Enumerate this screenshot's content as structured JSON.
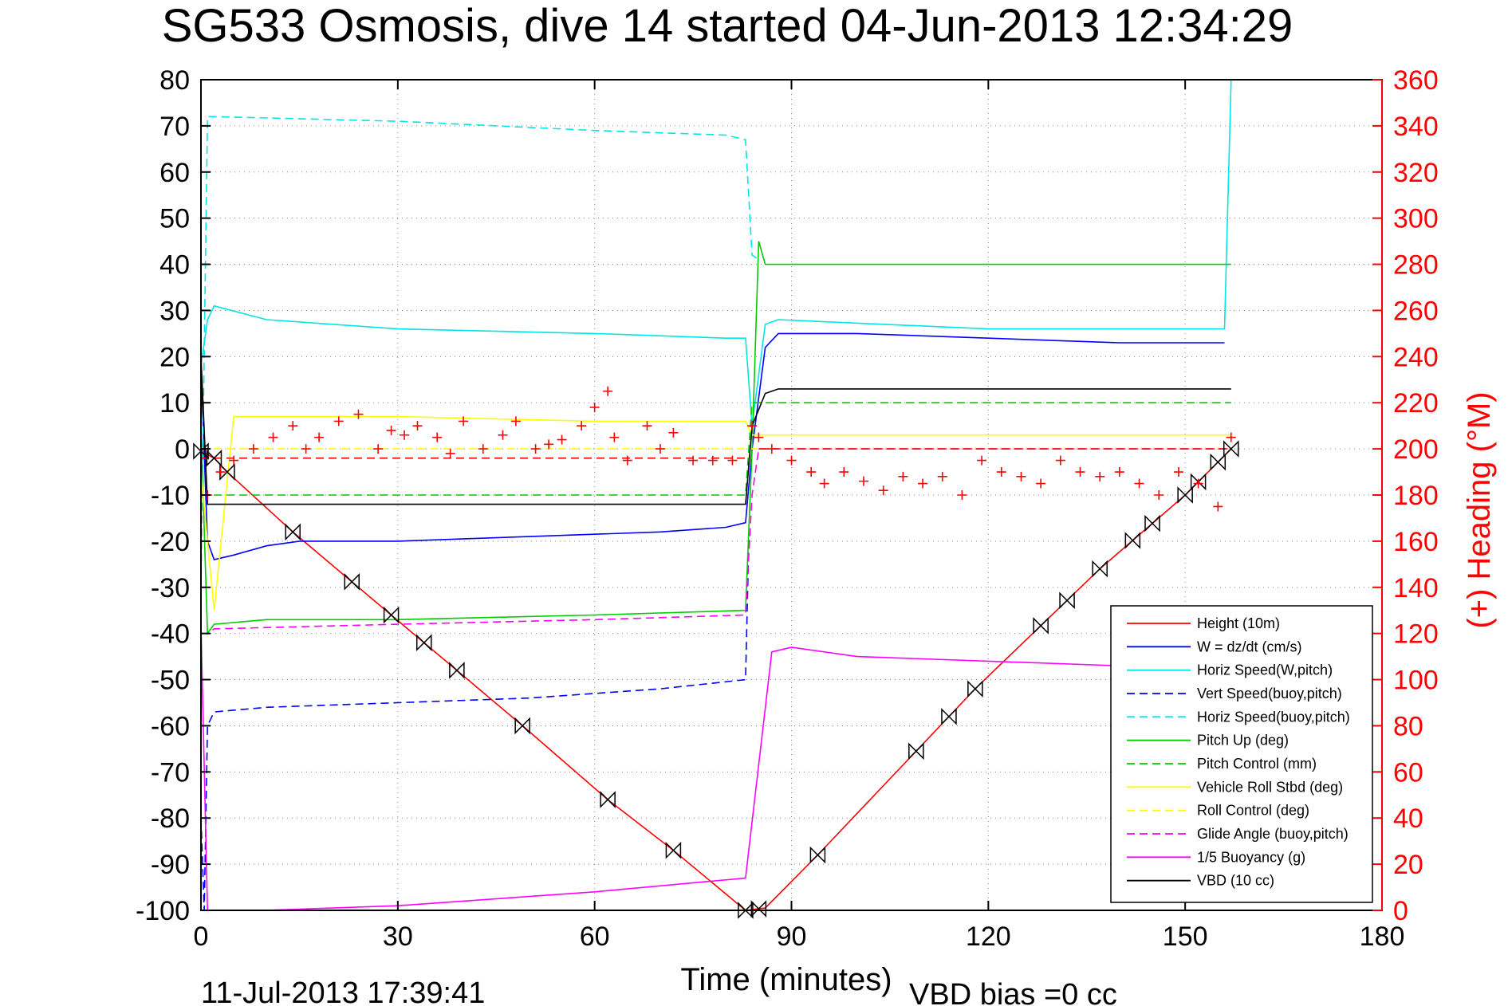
{
  "chart_data": {
    "type": "line",
    "title": "SG533 Osmosis, dive 14 started 04-Jun-2013 12:34:29",
    "xlabel": "Time (minutes)",
    "ylabel": "",
    "y2label": "(+) Heading (°M)",
    "footer_left": "11-Jul-2013 17:39:41",
    "footer_right": "VBD bias =0 cc",
    "xlim": [
      0,
      180
    ],
    "ylim": [
      -100,
      80
    ],
    "y2lim": [
      0,
      360
    ],
    "x_ticks": [
      0,
      30,
      60,
      90,
      120,
      150,
      180
    ],
    "y_ticks": [
      -100,
      -90,
      -80,
      -70,
      -60,
      -50,
      -40,
      -30,
      -20,
      -10,
      0,
      10,
      20,
      30,
      40,
      50,
      60,
      70,
      80
    ],
    "y2_ticks": [
      0,
      20,
      40,
      60,
      80,
      100,
      120,
      140,
      160,
      180,
      200,
      220,
      240,
      260,
      280,
      300,
      320,
      340,
      360
    ],
    "grid": "dotted",
    "legend_position": "lower-right",
    "series": [
      {
        "name": "Height (10m)",
        "color": "#ff0000",
        "style": "solid",
        "x": [
          0,
          2,
          4,
          14,
          29,
          49,
          62,
          72,
          83,
          86,
          94,
          118,
          137,
          150,
          157
        ],
        "y": [
          -0.5,
          -2,
          -5,
          -18,
          -36,
          -60,
          -76,
          -87,
          -100,
          -99.5,
          -88,
          -52,
          -26,
          -10,
          0
        ]
      },
      {
        "name": "W = dz/dt (cm/s)",
        "color": "#0000ff",
        "style": "solid",
        "x": [
          0,
          1,
          2,
          5,
          10,
          15,
          30,
          50,
          70,
          80,
          83,
          84,
          86,
          88,
          100,
          120,
          140,
          156
        ],
        "y": [
          18,
          -20,
          -24,
          -23,
          -21,
          -20,
          -20,
          -19,
          -18,
          -17,
          -16,
          0,
          22,
          25,
          25,
          24,
          23,
          23
        ]
      },
      {
        "name": "Horiz Speed(W,pitch)",
        "color": "#00e5e5",
        "style": "solid",
        "x": [
          0,
          1,
          2,
          10,
          30,
          60,
          80,
          83,
          84,
          86,
          88,
          120,
          150,
          156,
          157
        ],
        "y": [
          18,
          28,
          31,
          28,
          26,
          25,
          24,
          24,
          5,
          27,
          28,
          26,
          26,
          26,
          80
        ]
      },
      {
        "name": "Vert Speed(buoy,pitch)",
        "color": "#0000ff",
        "style": "dashed",
        "x": [
          0,
          0.5,
          1,
          2,
          10,
          30,
          50,
          70,
          83,
          83.5,
          84
        ],
        "y": [
          -80,
          -100,
          -60,
          -57,
          -56,
          -55,
          -54,
          -52,
          -50,
          -20,
          -19
        ]
      },
      {
        "name": "Horiz Speed(buoy,pitch)",
        "color": "#00e5e5",
        "style": "dashed",
        "x": [
          0,
          1,
          2,
          30,
          60,
          80,
          83,
          84,
          85
        ],
        "y": [
          -30,
          72,
          72,
          71,
          69,
          68,
          67,
          42,
          41
        ]
      },
      {
        "name": "Pitch Up (deg)",
        "color": "#00cc00",
        "style": "solid",
        "x": [
          0,
          1,
          2,
          10,
          30,
          60,
          83,
          84,
          85,
          86,
          88,
          120,
          150,
          156,
          157
        ],
        "y": [
          5,
          -40,
          -38,
          -37,
          -37,
          -36,
          -35,
          0,
          45,
          40,
          40,
          40,
          40,
          40,
          40
        ]
      },
      {
        "name": "Pitch Control (mm)",
        "color": "#00cc00",
        "style": "dashed",
        "x": [
          0,
          2,
          83,
          84,
          86,
          157
        ],
        "y": [
          -10,
          -10,
          -10,
          10,
          10,
          10
        ]
      },
      {
        "name": "Vehicle Roll Stbd (deg)",
        "color": "#ffff00",
        "style": "solid",
        "x": [
          0,
          2,
          5,
          30,
          60,
          83,
          84,
          86,
          88,
          120,
          150,
          157
        ],
        "y": [
          -5,
          -35,
          7,
          7,
          6,
          6,
          3,
          3,
          3,
          3,
          3,
          3
        ]
      },
      {
        "name": "Roll Control (deg)",
        "color": "#ffff00",
        "style": "dashed",
        "x": [
          0,
          157
        ],
        "y": [
          0,
          0
        ]
      },
      {
        "name": "Glide Angle (buoy,pitch)",
        "color": "#ff00ff",
        "style": "dashed",
        "x": [
          0,
          1,
          2,
          30,
          60,
          83,
          84,
          85,
          157
        ],
        "y": [
          -40,
          -40,
          -39,
          -38,
          -37,
          -36,
          -10,
          0,
          0
        ]
      },
      {
        "name": "1/5 Buoyancy (g)",
        "color": "#ff00ff",
        "style": "solid",
        "x": [
          0,
          1,
          10,
          30,
          60,
          83,
          87,
          90,
          100,
          120,
          140
        ],
        "y": [
          -38,
          -100,
          -100,
          -99,
          -96,
          -93,
          -44,
          -43,
          -45,
          -46,
          -47
        ]
      },
      {
        "name": "VBD (10 cc)",
        "color": "#000000",
        "style": "solid",
        "x": [
          0,
          1,
          2,
          30,
          60,
          83,
          84,
          86,
          88,
          120,
          157
        ],
        "y": [
          20,
          -12,
          -12,
          -12,
          -12,
          -12,
          5,
          12,
          13,
          13,
          13
        ]
      }
    ],
    "heading_series": {
      "name": "(+) Heading (°M)",
      "color": "#ff0000",
      "marker": "+",
      "x": [
        1,
        3,
        5,
        8,
        11,
        14,
        16,
        18,
        21,
        24,
        27,
        29,
        31,
        33,
        36,
        38,
        40,
        43,
        46,
        48,
        51,
        53,
        55,
        58,
        60,
        62,
        63,
        65,
        68,
        70,
        72,
        75,
        78,
        81,
        84,
        85,
        87,
        90,
        93,
        95,
        98,
        101,
        104,
        107,
        110,
        113,
        116,
        119,
        122,
        125,
        128,
        131,
        134,
        137,
        140,
        143,
        146,
        149,
        152,
        155,
        157
      ],
      "y": [
        180,
        190,
        195,
        200,
        205,
        210,
        200,
        205,
        212,
        215,
        200,
        208,
        206,
        210,
        205,
        198,
        212,
        200,
        206,
        212,
        200,
        202,
        204,
        210,
        218,
        225,
        205,
        195,
        210,
        200,
        207,
        195,
        195,
        195,
        210,
        205,
        200,
        195,
        190,
        185,
        190,
        186,
        182,
        188,
        185,
        188,
        180,
        195,
        190,
        188,
        185,
        195,
        190,
        188,
        190,
        185,
        180,
        190,
        185,
        175,
        205
      ]
    },
    "reference_lines": [
      {
        "color": "#ff0000",
        "style": "dashed",
        "x": [
          0,
          83
        ],
        "y": [
          -2,
          -2
        ]
      },
      {
        "color": "#ff0000",
        "style": "dashed",
        "x": [
          85,
          157
        ],
        "y": [
          0,
          0
        ]
      }
    ],
    "height_markers_x": [
      0,
      2,
      4,
      14,
      23,
      29,
      34,
      39,
      49,
      62,
      72,
      83,
      85,
      94,
      109,
      114,
      118,
      128,
      132,
      137,
      142,
      145,
      150,
      152,
      155,
      157
    ]
  }
}
